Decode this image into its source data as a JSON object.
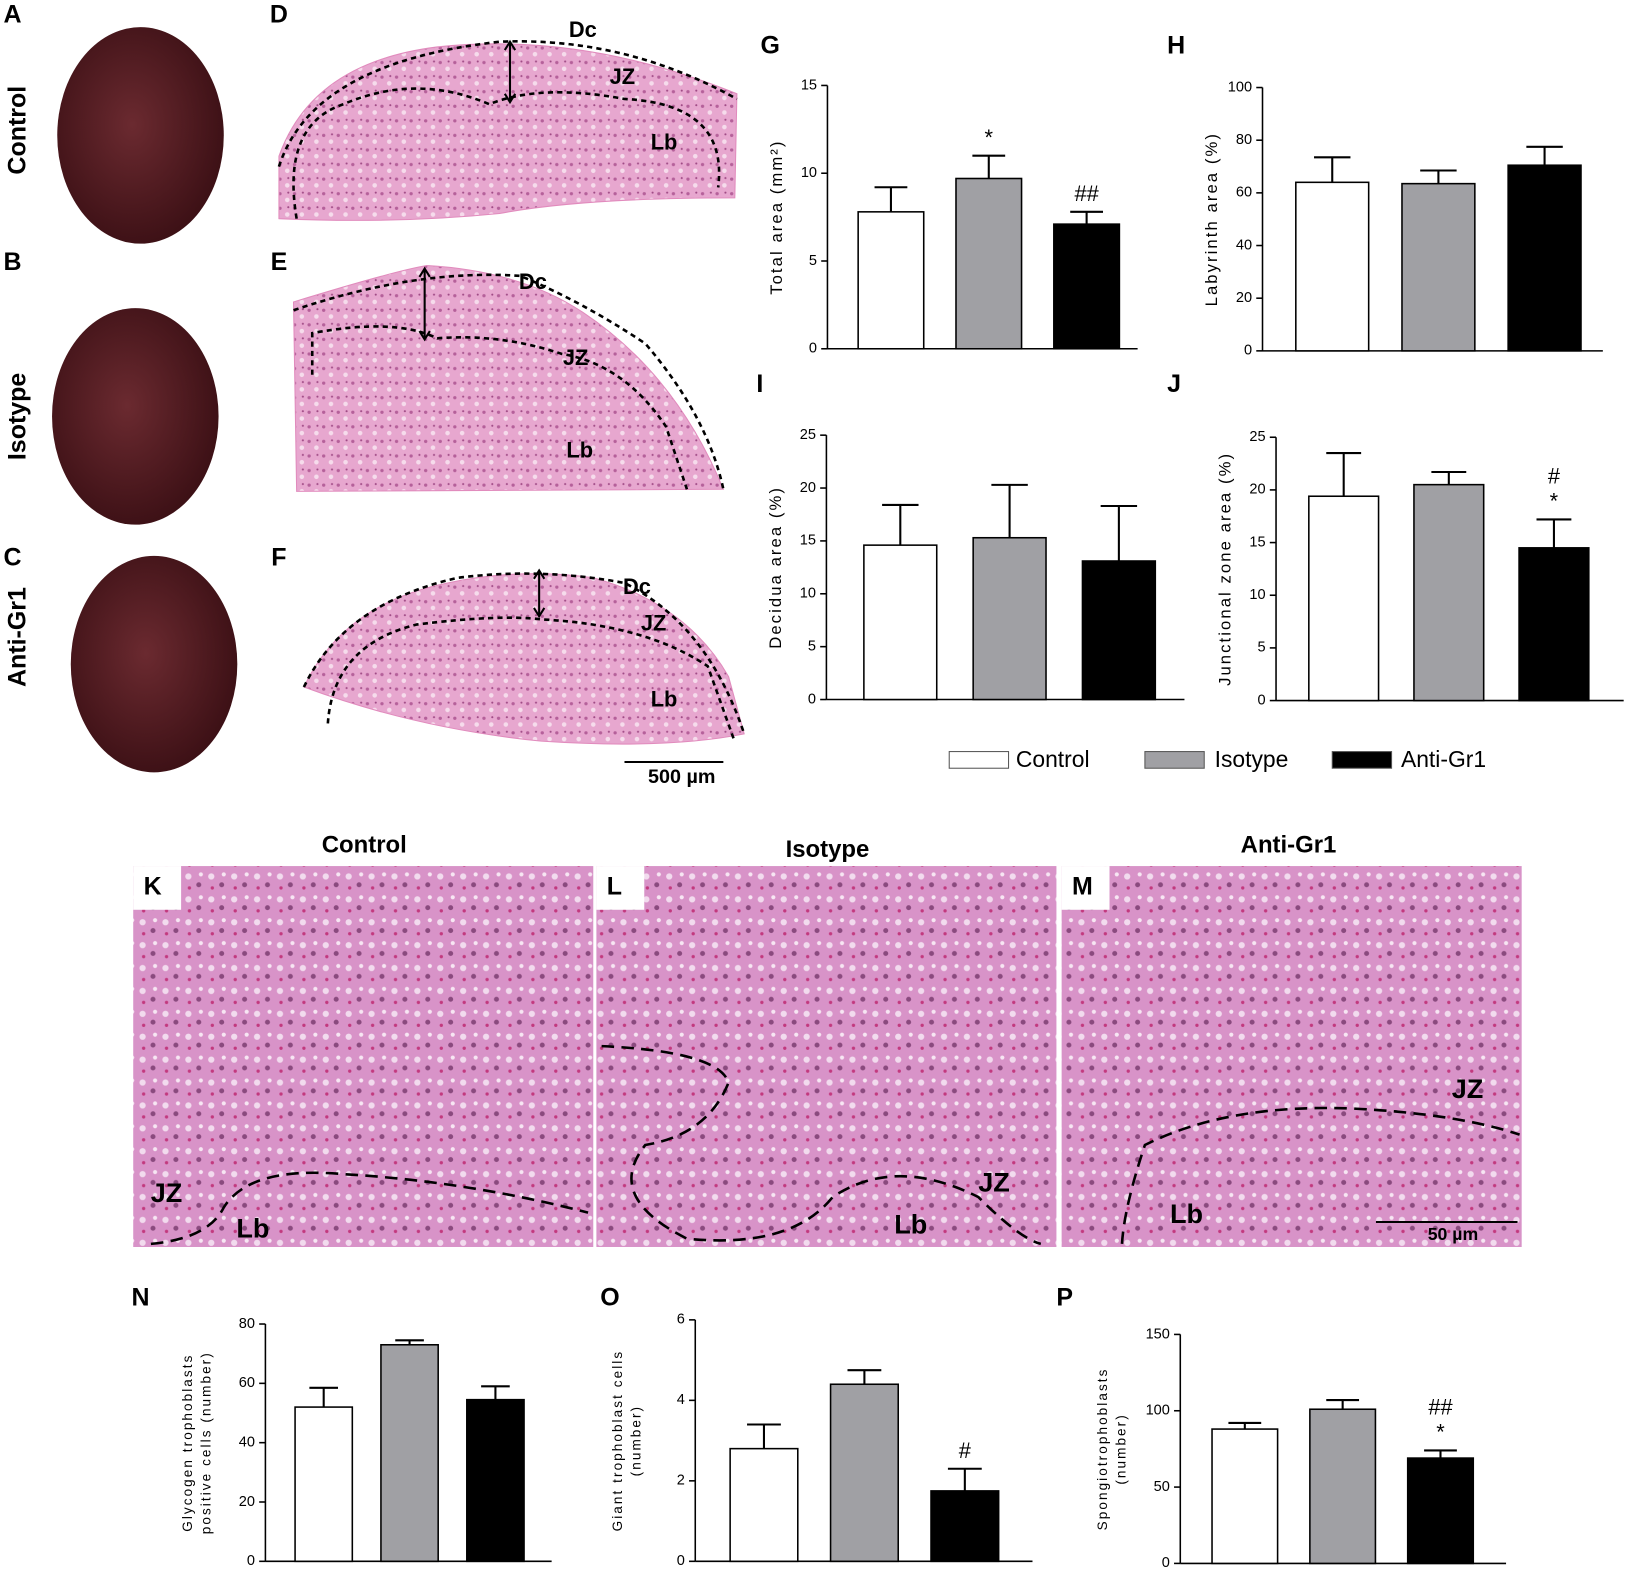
{
  "legend": [
    {
      "name": "Control",
      "color": "#ffffff"
    },
    {
      "name": "Isotype",
      "color": "#a0a0a4"
    },
    {
      "name": "Anti-Gr1",
      "color": "#000000"
    }
  ],
  "photos": [
    {
      "letter": "A",
      "label": "Control"
    },
    {
      "letter": "B",
      "label": "Isotype"
    },
    {
      "letter": "C",
      "label": "Anti-Gr1"
    }
  ],
  "sections": {
    "panels": [
      {
        "letter": "D",
        "labels": [
          "Dc",
          "JZ",
          "Lb"
        ]
      },
      {
        "letter": "E",
        "labels": [
          "Dc",
          "JZ",
          "Lb"
        ]
      },
      {
        "letter": "F",
        "labels": [
          "Dc",
          "JZ",
          "Lb"
        ]
      }
    ],
    "scale_bar": "500 µm"
  },
  "micrographs": {
    "panels": [
      {
        "title": "Control",
        "letter": "K",
        "labels": [
          "JZ",
          "Lb"
        ]
      },
      {
        "title": "Isotype",
        "letter": "L",
        "labels": [
          "JZ",
          "Lb"
        ]
      },
      {
        "title": "Anti-Gr1",
        "letter": "M",
        "labels": [
          "JZ",
          "Lb"
        ]
      }
    ],
    "scale_bar": "50 µm"
  },
  "chart_data": [
    {
      "type": "bar",
      "letter": "G",
      "ylabel": [
        "Total area (mm²)"
      ],
      "values": [
        7.8,
        9.7,
        7.1
      ],
      "errors": [
        1.4,
        1.3,
        0.7
      ],
      "annotations": [
        [],
        [
          "*"
        ],
        [
          "##"
        ]
      ],
      "ylim": [
        0,
        15
      ],
      "yticks": [
        0,
        5,
        10,
        15
      ]
    },
    {
      "type": "bar",
      "letter": "H",
      "ylabel": [
        "Labyrinth area (%)"
      ],
      "values": [
        64,
        63.5,
        70.5
      ],
      "errors": [
        9.5,
        5,
        7
      ],
      "annotations": [
        [],
        [],
        []
      ],
      "ylim": [
        0,
        100
      ],
      "yticks": [
        0,
        20,
        40,
        60,
        80,
        100
      ]
    },
    {
      "type": "bar",
      "letter": "I",
      "ylabel": [
        "Decidua area (%)"
      ],
      "values": [
        14.6,
        15.3,
        13.1
      ],
      "errors": [
        3.8,
        5,
        5.2
      ],
      "annotations": [
        [],
        [],
        []
      ],
      "ylim": [
        0,
        25
      ],
      "yticks": [
        0,
        5,
        10,
        15,
        20,
        25
      ]
    },
    {
      "type": "bar",
      "letter": "J",
      "ylabel": [
        "Junctional zone area (%)"
      ],
      "values": [
        19.4,
        20.5,
        14.5
      ],
      "errors": [
        4.1,
        1.2,
        2.7
      ],
      "annotations": [
        [],
        [],
        [
          "#",
          "*"
        ]
      ],
      "ylim": [
        0,
        25
      ],
      "yticks": [
        0,
        5,
        10,
        15,
        20,
        25
      ]
    },
    {
      "type": "bar",
      "letter": "N",
      "ylabel": [
        "Glycogen trophoblasts",
        "positive cells (number)"
      ],
      "values": [
        52,
        73,
        54.5
      ],
      "errors": [
        6.5,
        1.5,
        4.5
      ],
      "annotations": [
        [],
        [],
        []
      ],
      "ylim": [
        0,
        80
      ],
      "yticks": [
        0,
        20,
        40,
        60,
        80
      ]
    },
    {
      "type": "bar",
      "letter": "O",
      "ylabel": [
        "Giant trophoblast cells",
        "(number)"
      ],
      "values": [
        2.8,
        4.4,
        1.75
      ],
      "errors": [
        0.6,
        0.35,
        0.55
      ],
      "annotations": [
        [],
        [],
        [
          "#"
        ]
      ],
      "ylim": [
        0,
        6
      ],
      "yticks": [
        0,
        2,
        4,
        6
      ]
    },
    {
      "type": "bar",
      "letter": "P",
      "ylabel": [
        "Spongiotrophoblasts",
        "(number)"
      ],
      "values": [
        88,
        101,
        69
      ],
      "errors": [
        4,
        6,
        5
      ],
      "annotations": [
        [],
        [],
        [
          "##",
          "*"
        ]
      ],
      "ylim": [
        0,
        150
      ],
      "yticks": [
        0,
        50,
        100,
        150
      ]
    }
  ]
}
